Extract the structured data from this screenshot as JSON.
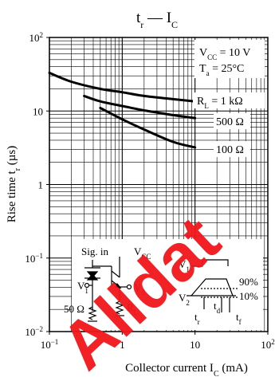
{
  "chart_data": {
    "type": "line",
    "title": {
      "main": "t",
      "sub": "r",
      "sep": " — I",
      "sub2": "C"
    },
    "xlabel": {
      "pre": "Collector current  I",
      "sub": "C",
      "post": "  (mA)"
    },
    "ylabel": {
      "pre": "Rise time  t",
      "sub": "r",
      "post": "  (µs)"
    },
    "x_scale": "log",
    "y_scale": "log",
    "xlim": [
      0.1,
      100
    ],
    "ylim": [
      0.01,
      100
    ],
    "grid": true,
    "x_ticks": [
      {
        "value": 0.1,
        "base": "10",
        "exp": "−1"
      },
      {
        "value": 1,
        "base": "1",
        "exp": ""
      },
      {
        "value": 10,
        "base": "10",
        "exp": ""
      },
      {
        "value": 100,
        "base": "10",
        "exp": "2"
      }
    ],
    "y_ticks": [
      {
        "value": 100,
        "base": "10",
        "exp": "2"
      },
      {
        "value": 10,
        "base": "10",
        "exp": ""
      },
      {
        "value": 1,
        "base": "1",
        "exp": ""
      },
      {
        "value": 0.1,
        "base": "10",
        "exp": "−1"
      },
      {
        "value": 0.01,
        "base": "10",
        "exp": "−2"
      }
    ],
    "conditions": [
      {
        "pre": "V",
        "sub": "CC",
        "post": " = 10 V"
      },
      {
        "pre": "T",
        "sub": "a",
        "post": " = 25°C"
      }
    ],
    "series": [
      {
        "name": "R_L = 1 kΩ",
        "x": [
          0.1,
          0.2,
          0.5,
          1,
          2,
          5,
          10
        ],
        "y": [
          33,
          25,
          20,
          18,
          16,
          14.5,
          13.5
        ]
      },
      {
        "name": "500 Ω",
        "x": [
          0.3,
          0.5,
          1,
          2,
          5,
          10
        ],
        "y": [
          16,
          13.5,
          11.7,
          10.2,
          8.8,
          8
        ]
      },
      {
        "name": "100 Ω",
        "x": [
          0.5,
          1,
          2,
          5,
          10
        ],
        "y": [
          11,
          7.7,
          5.6,
          3.8,
          3.2
        ]
      }
    ],
    "series_labels": [
      {
        "pre": "R",
        "sub": "L",
        "post": " = 1 kΩ"
      },
      {
        "pre": "",
        "sub": "",
        "post": "500 Ω"
      },
      {
        "pre": "",
        "sub": "",
        "post": "100 Ω"
      }
    ],
    "inset": {
      "sig_in": "Sig. in",
      "vcc": {
        "pre": "V",
        "sub": "CC"
      },
      "v1": {
        "pre": "V",
        "sub": "1"
      },
      "v2": {
        "pre": "V",
        "sub": "2"
      },
      "r50": "50 Ω",
      "rl": {
        "pre": "R",
        "sub": "L"
      },
      "pct90": "90%",
      "pct10": "10%",
      "td": {
        "pre": "t",
        "sub": "d"
      },
      "tr": {
        "pre": "t",
        "sub": "r"
      },
      "tf": {
        "pre": "t",
        "sub": "f"
      }
    },
    "watermark": "Alldat"
  }
}
